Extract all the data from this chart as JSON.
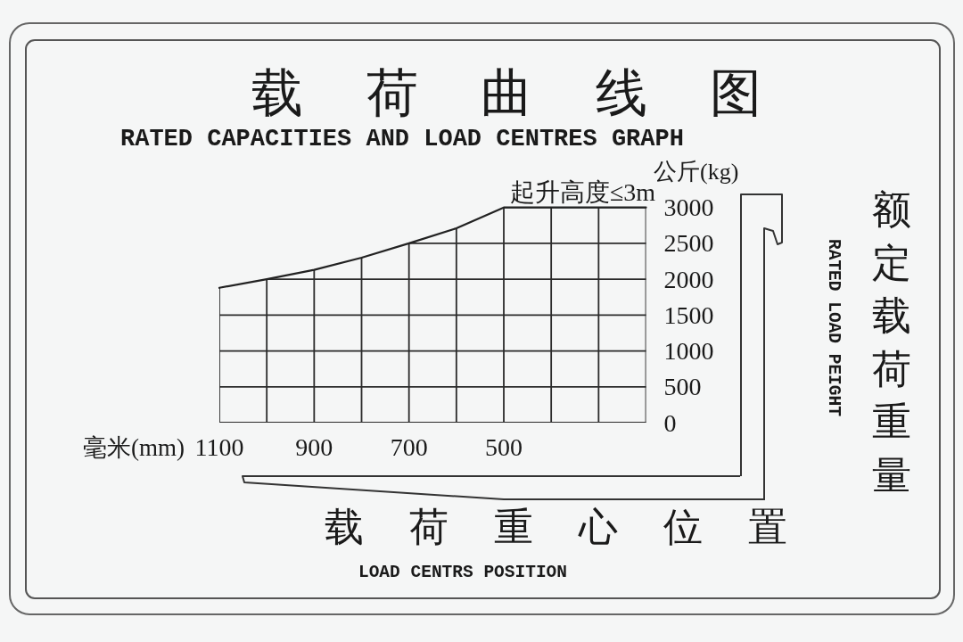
{
  "chart_data": {
    "type": "line",
    "title": "载荷曲线图",
    "subtitle": "RATED CAPACITIES AND LOAD CENTRES GRAPH",
    "xlabel": "毫米(mm)",
    "ylabel": "公斤(kg)",
    "annotations": [
      "起升高度≤3m",
      "载荷重心位置",
      "LOAD CENTRS POSITION",
      "额定载荷重量",
      "RATED LOAD PEIGHT"
    ],
    "x": [
      1100,
      1000,
      900,
      800,
      700,
      600,
      500,
      400,
      300,
      200
    ],
    "series": [
      {
        "color": "#222222",
        "values": [
          1880,
          2000,
          2130,
          2300,
          2500,
          2710,
          3000,
          3000,
          3000,
          3000
        ]
      }
    ],
    "xlim": [
      1100,
      200
    ],
    "xticks": [
      1100,
      {
        "value": 1000,
        "label": null
      },
      900,
      {
        "value": 800,
        "label": null
      },
      700,
      {
        "value": 600,
        "label": null
      },
      500,
      {
        "value": 400,
        "label": null
      },
      {
        "value": 300,
        "label": null
      },
      {
        "value": 200,
        "label": null
      }
    ],
    "ylim": [
      0,
      3000
    ],
    "yticks": [
      0,
      500,
      1000,
      1500,
      2000,
      2500,
      3000
    ],
    "grid": true
  }
}
